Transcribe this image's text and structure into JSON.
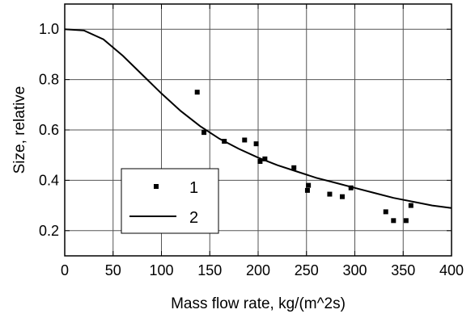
{
  "chart_data": {
    "type": "scatter",
    "xlabel": "Mass flow rate, kg/(m^2s)",
    "ylabel": "Size, relative",
    "xlim": [
      0,
      400
    ],
    "ylim": [
      0.1,
      1.1
    ],
    "x_ticks": [
      "0",
      "50",
      "100",
      "150",
      "200",
      "250",
      "300",
      "350",
      "400"
    ],
    "y_ticks": [
      "0.2",
      "0.4",
      "0.6",
      "0.8",
      "1.0"
    ],
    "grid": true,
    "legend_position": "bottom-left",
    "series": [
      {
        "name": "1",
        "kind": "points",
        "points": [
          [
            137,
            0.75
          ],
          [
            144,
            0.59
          ],
          [
            165,
            0.555
          ],
          [
            186,
            0.56
          ],
          [
            198,
            0.545
          ],
          [
            202,
            0.475
          ],
          [
            207,
            0.485
          ],
          [
            237,
            0.45
          ],
          [
            251,
            0.36
          ],
          [
            252,
            0.38
          ],
          [
            274,
            0.345
          ],
          [
            287,
            0.335
          ],
          [
            296,
            0.37
          ],
          [
            332,
            0.275
          ],
          [
            340,
            0.24
          ],
          [
            353,
            0.24
          ],
          [
            358,
            0.3
          ]
        ]
      },
      {
        "name": "2",
        "kind": "line",
        "points": [
          [
            0,
            1.0
          ],
          [
            20,
            0.995
          ],
          [
            40,
            0.96
          ],
          [
            60,
            0.895
          ],
          [
            80,
            0.82
          ],
          [
            100,
            0.745
          ],
          [
            120,
            0.675
          ],
          [
            140,
            0.615
          ],
          [
            160,
            0.565
          ],
          [
            180,
            0.525
          ],
          [
            200,
            0.49
          ],
          [
            220,
            0.46
          ],
          [
            240,
            0.435
          ],
          [
            260,
            0.41
          ],
          [
            280,
            0.39
          ],
          [
            300,
            0.37
          ],
          [
            320,
            0.35
          ],
          [
            340,
            0.33
          ],
          [
            360,
            0.315
          ],
          [
            380,
            0.3
          ],
          [
            400,
            0.29
          ]
        ]
      }
    ]
  }
}
